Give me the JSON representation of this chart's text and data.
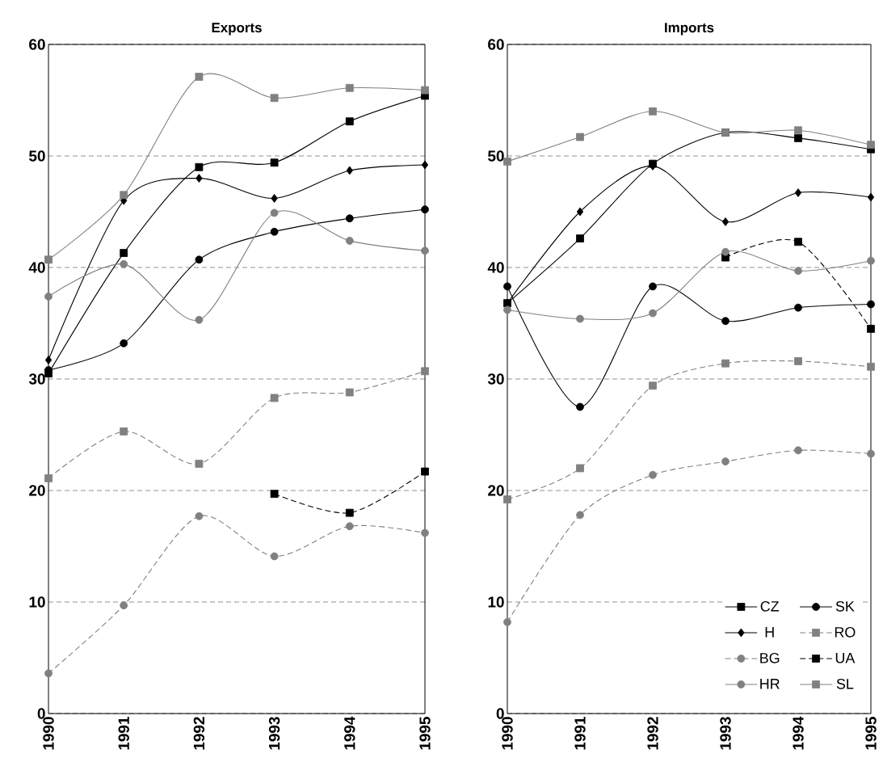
{
  "chart_data": [
    {
      "type": "line",
      "title": "Exports",
      "categories": [
        "1990",
        "1991",
        "1992",
        "1993",
        "1994",
        "1995"
      ],
      "ylim": [
        0,
        60
      ],
      "yticks": [
        0,
        10,
        20,
        30,
        40,
        50,
        60
      ],
      "grid": "y",
      "legend": false,
      "series": [
        {
          "color": "#000000",
          "marker": "square",
          "line_style": "solid",
          "values": [
            30.5,
            41.3,
            49.0,
            49.4,
            53.1,
            55.4
          ]
        },
        {
          "color": "#000000",
          "marker": "circle",
          "line_style": "solid",
          "values": [
            30.8,
            33.2,
            40.7,
            43.2,
            44.4,
            45.2
          ]
        },
        {
          "color": "#000000",
          "marker": "diamond",
          "line_style": "solid",
          "values": [
            31.7,
            46.0,
            48.0,
            46.2,
            48.7,
            49.2
          ]
        },
        {
          "color": "#808080",
          "marker": "square",
          "line_style": "dashed",
          "values": [
            21.1,
            25.3,
            22.4,
            28.3,
            28.8,
            30.7
          ]
        },
        {
          "color": "#808080",
          "marker": "circle",
          "line_style": "dashed",
          "values": [
            3.6,
            9.7,
            17.7,
            14.1,
            16.8,
            16.2
          ]
        },
        {
          "color": "#000000",
          "marker": "square",
          "line_style": "dashed",
          "values": [
            null,
            null,
            null,
            19.7,
            18.0,
            21.7
          ]
        },
        {
          "color": "#808080",
          "marker": "circle",
          "line_style": "solid",
          "values": [
            37.4,
            40.3,
            35.3,
            44.9,
            42.4,
            41.5
          ]
        },
        {
          "color": "#808080",
          "marker": "square",
          "line_style": "solid",
          "values": [
            40.7,
            46.5,
            57.1,
            55.2,
            56.1,
            55.9
          ]
        }
      ]
    },
    {
      "type": "line",
      "title": "Imports",
      "categories": [
        "1990",
        "1991",
        "1992",
        "1993",
        "1994",
        "1995"
      ],
      "ylim": [
        0,
        60
      ],
      "yticks": [
        0,
        10,
        20,
        30,
        40,
        50,
        60
      ],
      "grid": "y",
      "legend": "bottom right",
      "series": [
        {
          "name": "CZ",
          "color": "#000000",
          "marker": "square",
          "line_style": "solid",
          "values": [
            36.8,
            42.6,
            49.3,
            52.1,
            51.6,
            50.6
          ]
        },
        {
          "name": "SK",
          "color": "#000000",
          "marker": "circle",
          "line_style": "solid",
          "values": [
            38.3,
            27.5,
            38.3,
            35.2,
            36.4,
            36.7
          ]
        },
        {
          "name": "H",
          "color": "#000000",
          "marker": "diamond",
          "line_style": "solid",
          "values": [
            36.8,
            45.0,
            49.1,
            44.1,
            46.7,
            46.3
          ]
        },
        {
          "name": "RO",
          "color": "#808080",
          "marker": "square",
          "line_style": "dashed",
          "values": [
            19.2,
            22.0,
            29.4,
            31.4,
            31.6,
            31.1
          ]
        },
        {
          "name": "BG",
          "color": "#808080",
          "marker": "circle",
          "line_style": "dashed",
          "values": [
            8.2,
            17.8,
            21.4,
            22.6,
            23.6,
            23.3
          ]
        },
        {
          "name": "UA",
          "color": "#000000",
          "marker": "square",
          "line_style": "dashed",
          "values": [
            null,
            null,
            null,
            40.9,
            42.3,
            34.5
          ]
        },
        {
          "name": "HR",
          "color": "#808080",
          "marker": "circle",
          "line_style": "solid",
          "values": [
            36.2,
            35.4,
            35.9,
            41.4,
            39.7,
            40.6
          ]
        },
        {
          "name": "SL",
          "color": "#808080",
          "marker": "square",
          "line_style": "solid",
          "values": [
            49.5,
            51.7,
            54.0,
            52.1,
            52.3,
            51.0
          ]
        }
      ]
    }
  ]
}
